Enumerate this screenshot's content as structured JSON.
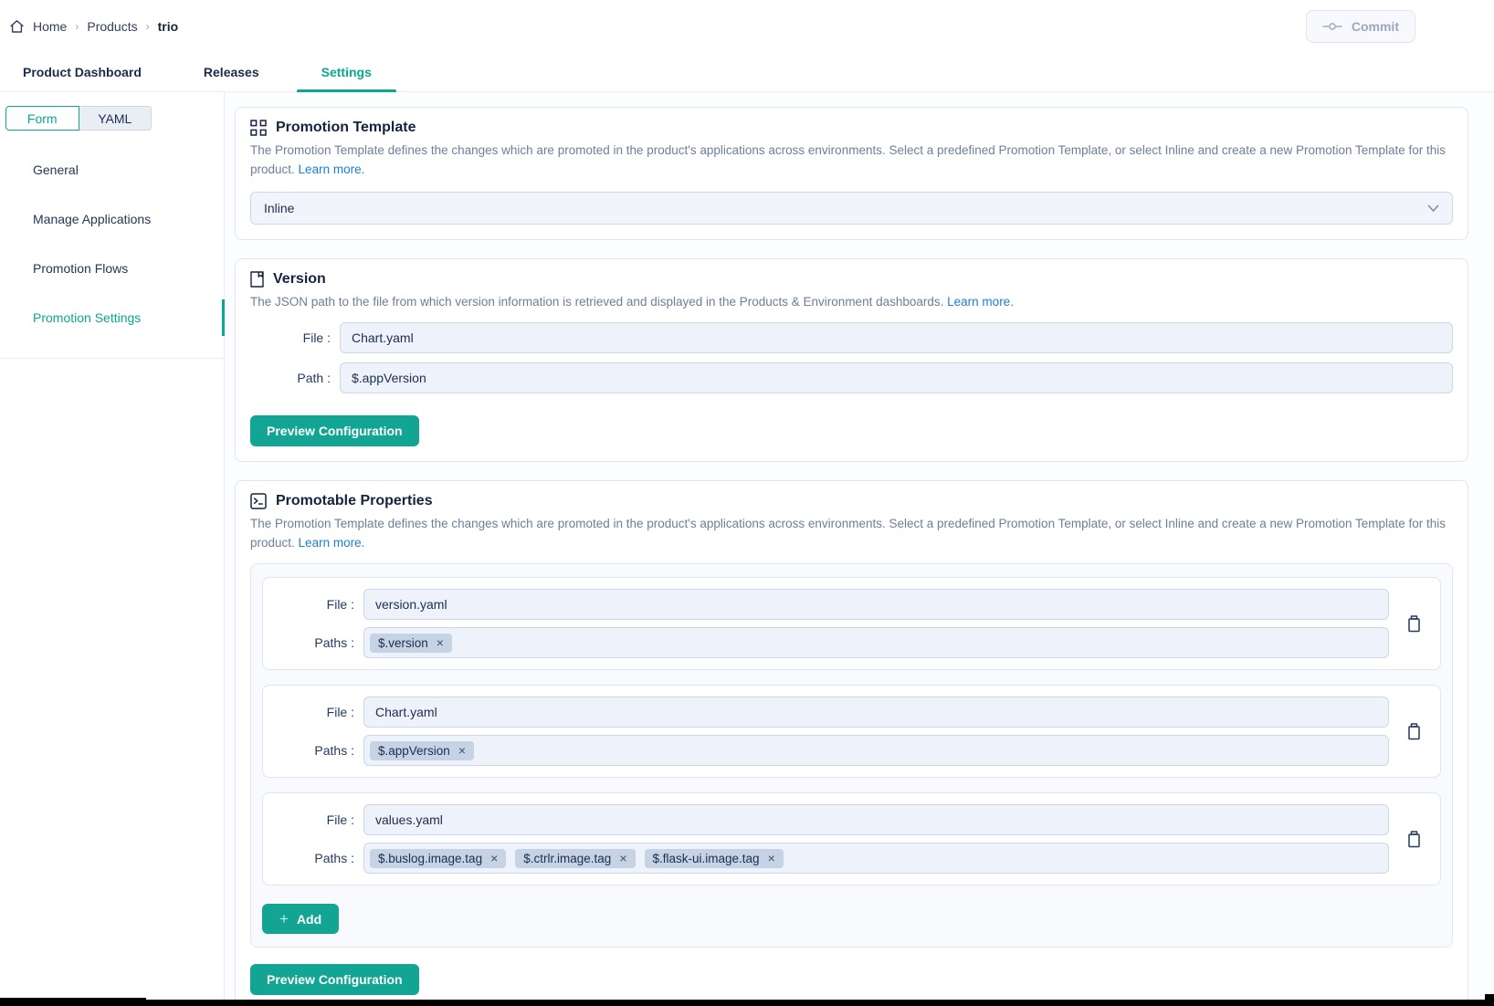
{
  "breadcrumb": {
    "home": "Home",
    "products": "Products",
    "current": "trio"
  },
  "header": {
    "commit_label": "Commit"
  },
  "tabs": {
    "product_dashboard": "Product Dashboard",
    "releases": "Releases",
    "settings": "Settings"
  },
  "sidebar": {
    "form_toggle": "Form",
    "yaml_toggle": "YAML",
    "items": {
      "general": "General",
      "manage_applications": "Manage Applications",
      "promotion_flows": "Promotion Flows",
      "promotion_settings": "Promotion Settings"
    }
  },
  "promotion_template": {
    "title": "Promotion Template",
    "description": "The Promotion Template defines the changes which are promoted in the product's applications across environments. Select a predefined Promotion Template, or select Inline and create a new Promotion Template for this product.",
    "learn_more": "Learn more.",
    "selected_option": "Inline"
  },
  "version": {
    "title": "Version",
    "description": "The JSON path to the file from which version information is retrieved and displayed in the Products & Environment dashboards.",
    "learn_more": "Learn more.",
    "file_label": "File :",
    "path_label": "Path :",
    "file_value": "Chart.yaml",
    "path_value": "$.appVersion",
    "preview_button": "Preview Configuration"
  },
  "promotable_properties": {
    "title": "Promotable Properties",
    "description": "The Promotion Template defines the changes which are promoted in the product's applications across environments. Select a predefined Promotion Template, or select Inline and create a new Promotion Template for this product.",
    "learn_more": "Learn more.",
    "file_label": "File :",
    "paths_label": "Paths :",
    "rows": [
      {
        "file": "version.yaml",
        "paths": [
          "$.version"
        ]
      },
      {
        "file": "Chart.yaml",
        "paths": [
          "$.appVersion"
        ]
      },
      {
        "file": "values.yaml",
        "paths": [
          "$.buslog.image.tag",
          "$.ctrlr.image.tag",
          "$.flask-ui.image.tag"
        ]
      }
    ],
    "add_button": "Add",
    "preview_button": "Preview Configuration"
  },
  "colors": {
    "accent_teal": "#12a594",
    "link_blue": "#1b7fd4",
    "text_navy": "#1c2d50",
    "chip_bg": "#c6d3e4",
    "input_bg": "#eef2fb"
  }
}
